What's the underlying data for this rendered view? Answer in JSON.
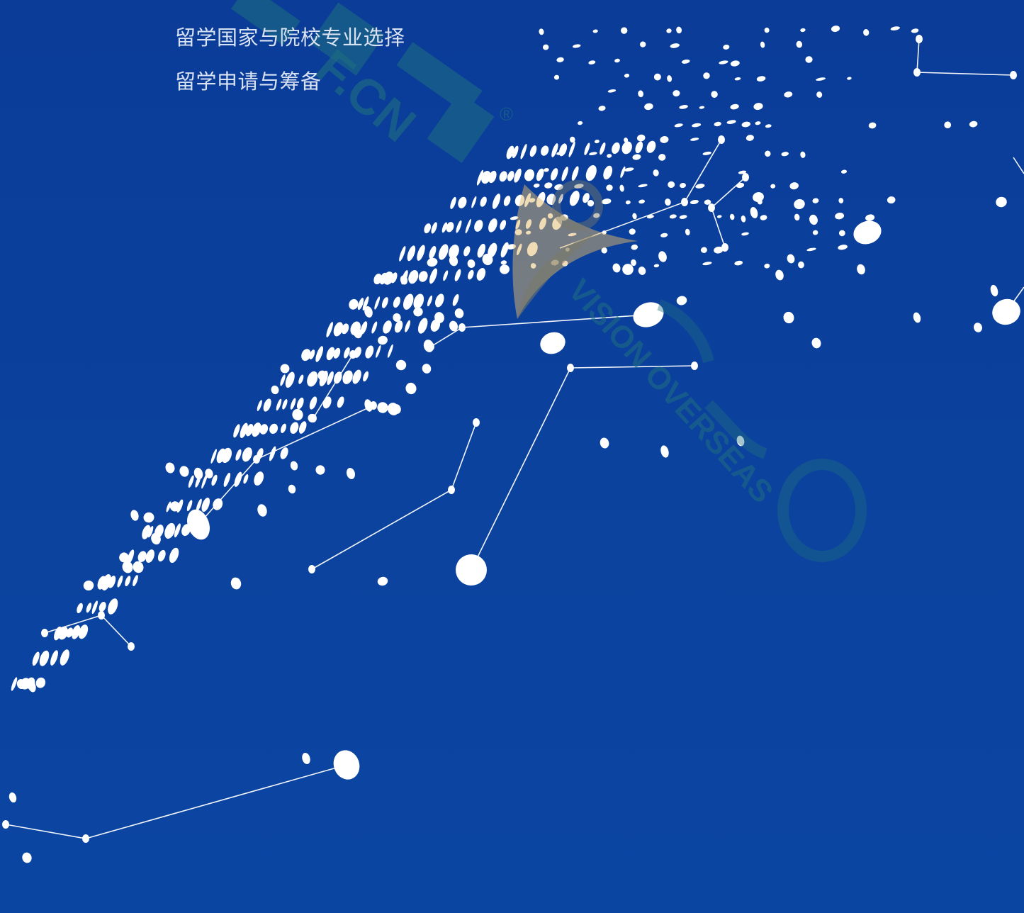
{
  "menu": {
    "items": [
      "留学国家与院校专业选择",
      "留学申请与筹备"
    ]
  },
  "watermarks": {
    "site_mark": "®",
    "site_domain": "F.CN",
    "brand_en": "VISION OVERSEAS"
  },
  "colors": {
    "background": "#0b429e",
    "dots": "#ffffff",
    "menu_text": "#d9e2f2",
    "watermark_teal": "#1f6f80",
    "watermark_gold": "#e0b86a"
  }
}
